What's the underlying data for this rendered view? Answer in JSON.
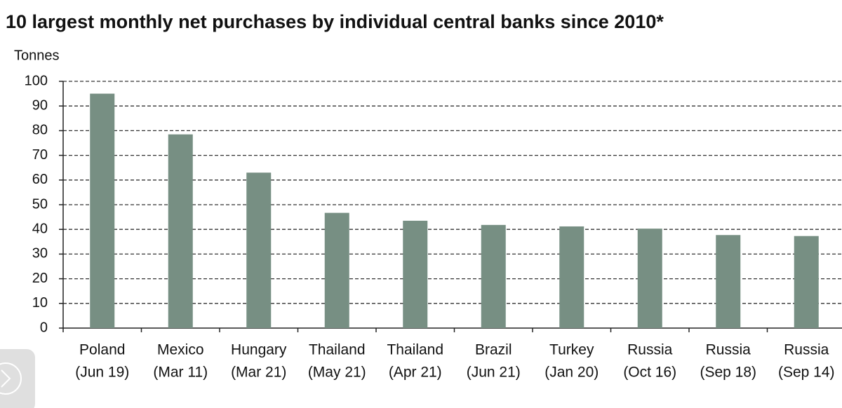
{
  "chart_data": {
    "type": "bar",
    "title": "10 largest monthly net purchases by individual central banks since 2010*",
    "y_label": "Tonnes",
    "categories": [
      [
        "Poland",
        "(Jun 19)"
      ],
      [
        "Mexico",
        "(Mar 11)"
      ],
      [
        "Hungary",
        "(Mar 21)"
      ],
      [
        "Thailand",
        "(May 21)"
      ],
      [
        "Thailand",
        "(Apr 21)"
      ],
      [
        "Brazil",
        "(Jun 21)"
      ],
      [
        "Turkey",
        "(Jan 20)"
      ],
      [
        "Russia",
        "(Oct 16)"
      ],
      [
        "Russia",
        "(Sep 18)"
      ],
      [
        "Russia",
        "(Sep 14)"
      ]
    ],
    "values": [
      95,
      78.5,
      63,
      46.7,
      43.5,
      41.8,
      41.2,
      40.3,
      37.7,
      37.3
    ],
    "color": "#778f83",
    "ylim": [
      0,
      100
    ],
    "yticks": [
      0,
      10,
      20,
      30,
      40,
      50,
      60,
      70,
      80,
      90,
      100
    ],
    "grid": true
  }
}
